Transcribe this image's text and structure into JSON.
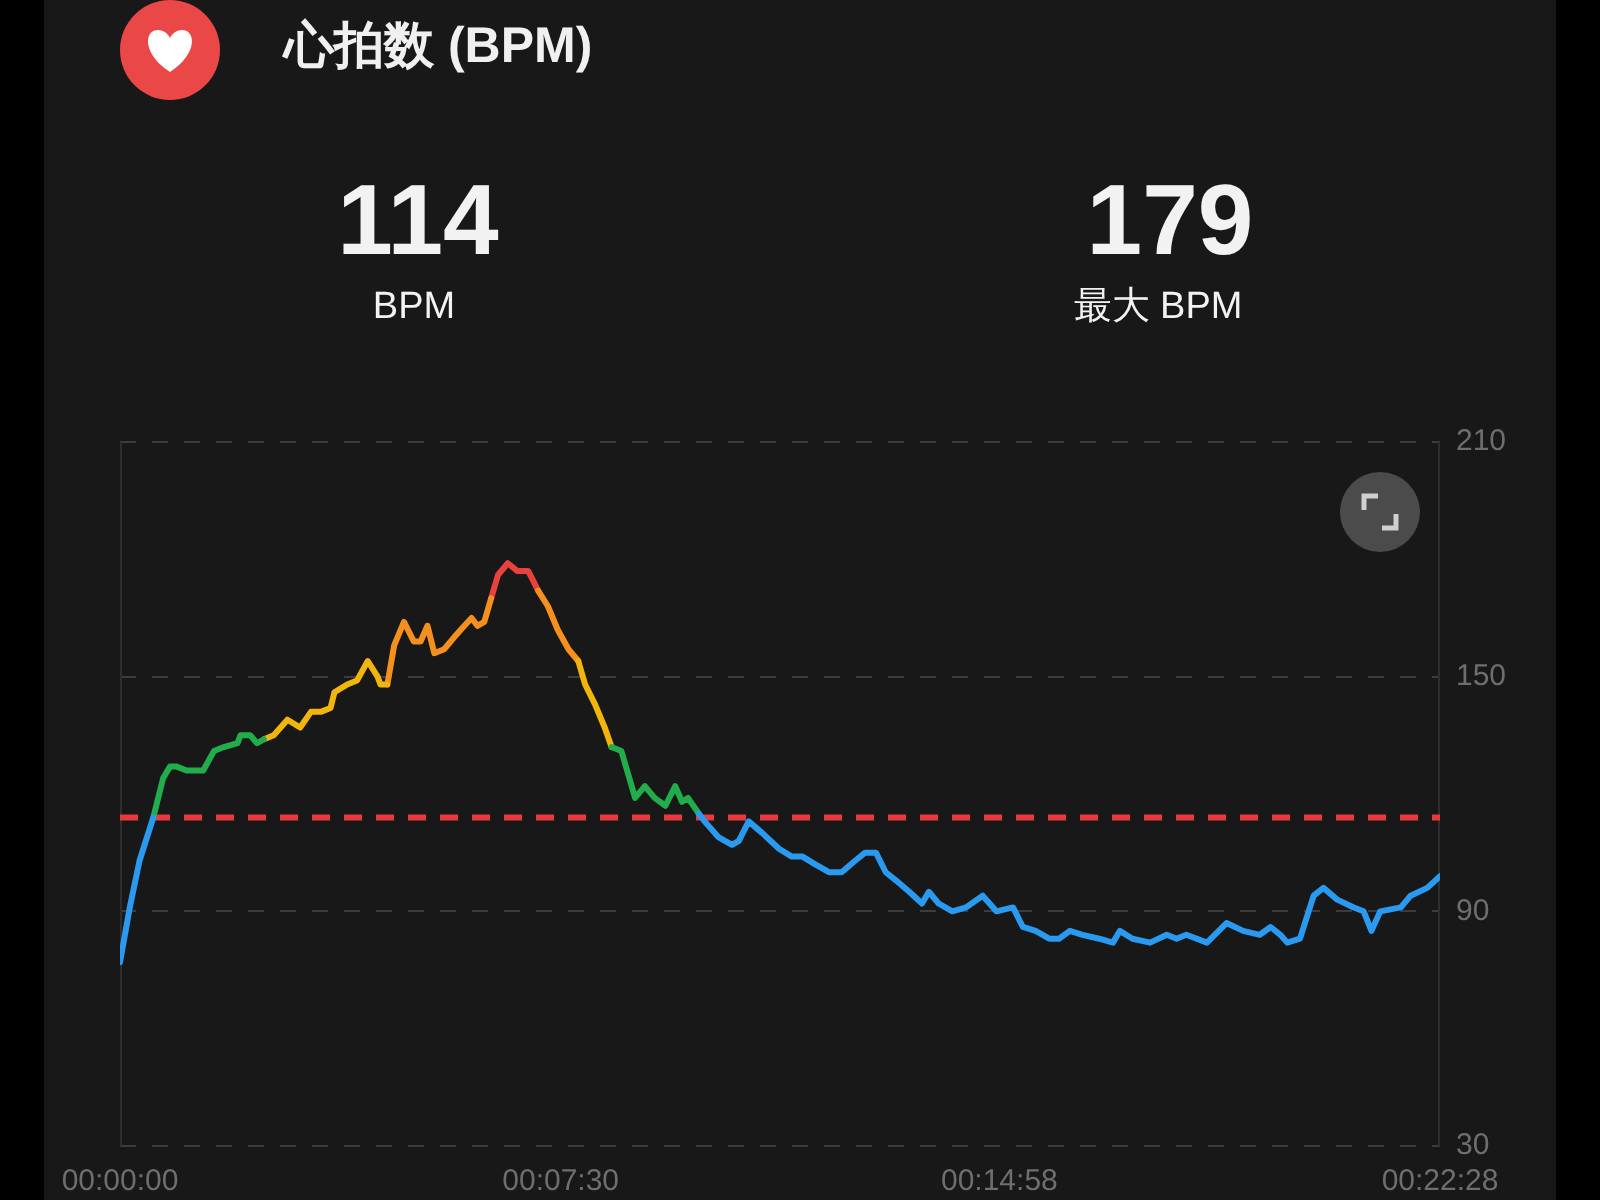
{
  "chart_data": {
    "type": "line",
    "title": "心拍数 (BPM)",
    "annotations": [
      "114",
      "BPM",
      "179",
      "最大 BPM"
    ],
    "x": [
      0,
      10,
      20,
      34,
      44,
      51,
      58,
      68,
      85,
      96,
      106,
      120,
      123,
      133,
      140,
      147,
      157,
      171,
      184,
      195,
      205,
      215,
      219,
      232,
      242,
      253,
      263,
      266,
      273,
      280,
      290,
      300,
      307,
      314,
      321,
      331,
      341,
      348,
      359,
      365,
      372,
      379,
      386,
      396,
      406,
      417,
      427,
      437,
      447,
      458,
      468,
      475,
      485,
      495,
      502,
      512,
      519,
      526,
      536,
      546,
      557,
      567,
      574,
      580,
      591,
      597,
      611,
      625,
      632,
      642,
      656,
      673,
      686,
      697,
      710,
      724,
      737,
      751,
      761,
      772,
      782,
      792,
      806,
      819,
      826,
      836,
      850,
      864,
      881,
      895,
      912,
      922,
      935,
      949,
      959,
      970,
      983,
      1000,
      1014,
      1021,
      1034,
      1052,
      1069,
      1079,
      1089,
      1110,
      1130,
      1147,
      1164,
      1175,
      1185,
      1192,
      1205,
      1219,
      1229,
      1243,
      1260,
      1270,
      1278,
      1287,
      1308,
      1318,
      1335,
      1348
    ],
    "series": [
      {
        "color": "#2a9af0",
        "values": [
          77,
          91,
          103,
          114,
          null,
          null,
          null,
          null,
          null,
          null,
          null,
          null,
          null,
          null,
          null,
          null,
          null,
          null,
          null,
          null,
          null,
          null,
          null,
          null,
          null,
          null,
          null,
          null,
          null,
          null,
          null,
          null,
          null,
          null,
          null,
          null,
          null,
          null,
          null,
          null,
          null,
          null,
          null,
          null,
          null,
          null,
          null,
          null,
          null,
          null,
          null,
          null,
          null,
          null,
          null,
          null,
          null,
          null,
          null,
          null,
          null,
          null,
          null,
          null,
          115,
          113,
          109,
          107,
          108,
          113,
          110,
          106,
          104,
          104,
          102,
          100,
          100,
          103,
          105,
          105,
          100,
          98,
          95,
          92,
          95,
          92,
          90,
          91,
          94,
          90,
          91,
          86,
          85,
          83,
          83,
          85,
          84,
          83,
          82,
          85,
          83,
          82,
          84,
          83,
          84,
          82,
          87,
          85,
          84,
          86,
          84,
          82,
          83,
          94,
          96,
          93,
          91,
          90,
          85,
          90,
          91,
          94,
          96,
          99
        ]
      },
      {
        "color": "#22ad4c",
        "values": [
          null,
          null,
          null,
          114,
          124,
          127,
          127,
          126,
          126,
          131,
          132,
          133,
          135,
          135,
          133,
          134,
          null,
          null,
          null,
          null,
          null,
          null,
          null,
          null,
          null,
          null,
          null,
          null,
          null,
          null,
          null,
          null,
          null,
          null,
          null,
          null,
          null,
          null,
          null,
          null,
          null,
          null,
          null,
          null,
          null,
          null,
          null,
          null,
          null,
          null,
          null,
          null,
          null,
          null,
          132,
          131,
          125,
          119,
          122,
          119,
          117,
          122,
          118,
          119,
          115,
          null,
          null,
          null,
          null,
          null,
          null,
          null,
          null,
          null,
          null,
          null,
          null,
          null,
          null,
          null,
          null,
          null,
          null,
          null,
          null,
          null,
          null,
          null,
          null,
          null,
          null,
          null,
          null,
          null,
          null,
          null,
          null,
          null,
          null,
          null,
          null,
          null,
          null,
          null,
          null,
          null,
          null,
          null,
          null,
          null,
          null,
          null,
          null,
          null,
          null,
          null,
          null,
          null,
          null,
          null,
          null,
          null,
          null,
          null
        ]
      },
      {
        "color": "#f2b50c",
        "values": [
          null,
          null,
          null,
          null,
          null,
          null,
          null,
          null,
          null,
          null,
          null,
          null,
          null,
          null,
          null,
          134,
          135,
          139,
          137,
          141,
          141,
          142,
          146,
          148,
          149,
          154,
          150,
          148,
          148,
          null,
          null,
          null,
          null,
          null,
          null,
          null,
          null,
          null,
          null,
          null,
          null,
          null,
          null,
          null,
          null,
          null,
          null,
          null,
          null,
          null,
          154,
          148,
          143,
          137,
          132,
          null,
          null,
          null,
          null,
          null,
          null,
          null,
          null,
          null,
          null,
          null,
          null,
          null,
          null,
          null,
          null,
          null,
          null,
          null,
          null,
          null,
          null,
          null,
          null,
          null,
          null,
          null,
          null,
          null,
          null,
          null,
          null,
          null,
          null,
          null,
          null,
          null,
          null,
          null,
          null,
          null,
          null,
          null,
          null,
          null,
          null,
          null,
          null,
          null,
          null,
          null,
          null,
          null,
          null,
          null,
          null,
          null,
          null,
          null,
          null,
          null,
          null,
          null,
          null,
          null,
          null,
          null,
          null,
          null
        ]
      },
      {
        "color": "#f5901f",
        "values": [
          null,
          null,
          null,
          null,
          null,
          null,
          null,
          null,
          null,
          null,
          null,
          null,
          null,
          null,
          null,
          null,
          null,
          null,
          null,
          null,
          null,
          null,
          null,
          null,
          null,
          null,
          null,
          null,
          148,
          158,
          164,
          159,
          159,
          163,
          156,
          157,
          160,
          162,
          165,
          163,
          164,
          170,
          null,
          null,
          null,
          null,
          172,
          168,
          162,
          157,
          154,
          null,
          null,
          null,
          null,
          null,
          null,
          null,
          null,
          null,
          null,
          null,
          null,
          null,
          null,
          null,
          null,
          null,
          null,
          null,
          null,
          null,
          null,
          null,
          null,
          null,
          null,
          null,
          null,
          null,
          null,
          null,
          null,
          null,
          null,
          null,
          null,
          null,
          null,
          null,
          null,
          null,
          null,
          null,
          null,
          null,
          null,
          null,
          null,
          null,
          null,
          null,
          null,
          null,
          null,
          null,
          null,
          null,
          null,
          null,
          null,
          null,
          null,
          null,
          null,
          null,
          null,
          null,
          null,
          null,
          null,
          null,
          null,
          null
        ]
      },
      {
        "color": "#e8423f",
        "values": [
          null,
          null,
          null,
          null,
          null,
          null,
          null,
          null,
          null,
          null,
          null,
          null,
          null,
          null,
          null,
          null,
          null,
          null,
          null,
          null,
          null,
          null,
          null,
          null,
          null,
          null,
          null,
          null,
          null,
          null,
          null,
          null,
          null,
          null,
          null,
          null,
          null,
          null,
          null,
          null,
          null,
          170,
          176,
          179,
          177,
          177,
          172,
          null,
          null,
          null,
          null,
          null,
          null,
          null,
          null,
          null,
          null,
          null,
          null,
          null,
          null,
          null,
          null,
          null,
          null,
          null,
          null,
          null,
          null,
          null,
          null,
          null,
          null,
          null,
          null,
          null,
          null,
          null,
          null,
          null,
          null,
          null,
          null,
          null,
          null,
          null,
          null,
          null,
          null,
          null,
          null,
          null,
          null,
          null,
          null,
          null,
          null,
          null,
          null,
          null,
          null,
          null,
          null,
          null,
          null,
          null,
          null,
          null,
          null,
          null,
          null,
          null,
          null,
          null,
          null,
          null,
          null,
          null,
          null,
          null,
          null,
          null,
          null,
          null
        ]
      }
    ],
    "xlim": [
      0,
      1348
    ],
    "xticks": [
      {
        "value": 0,
        "label": "00:00:00"
      },
      {
        "value": 450,
        "label": "00:07:30"
      },
      {
        "value": 898,
        "label": "00:14:58"
      },
      {
        "value": 1348,
        "label": "00:22:28"
      }
    ],
    "ylim": [
      30,
      210
    ],
    "yticks": [
      30,
      90,
      150,
      210
    ],
    "grid": "y",
    "legend": false,
    "marker": "none",
    "line_style": "solid",
    "ref_lines": [
      {
        "axis": "y",
        "value": 114,
        "color": "#e8393c",
        "line_style": "dashed"
      }
    ]
  }
}
